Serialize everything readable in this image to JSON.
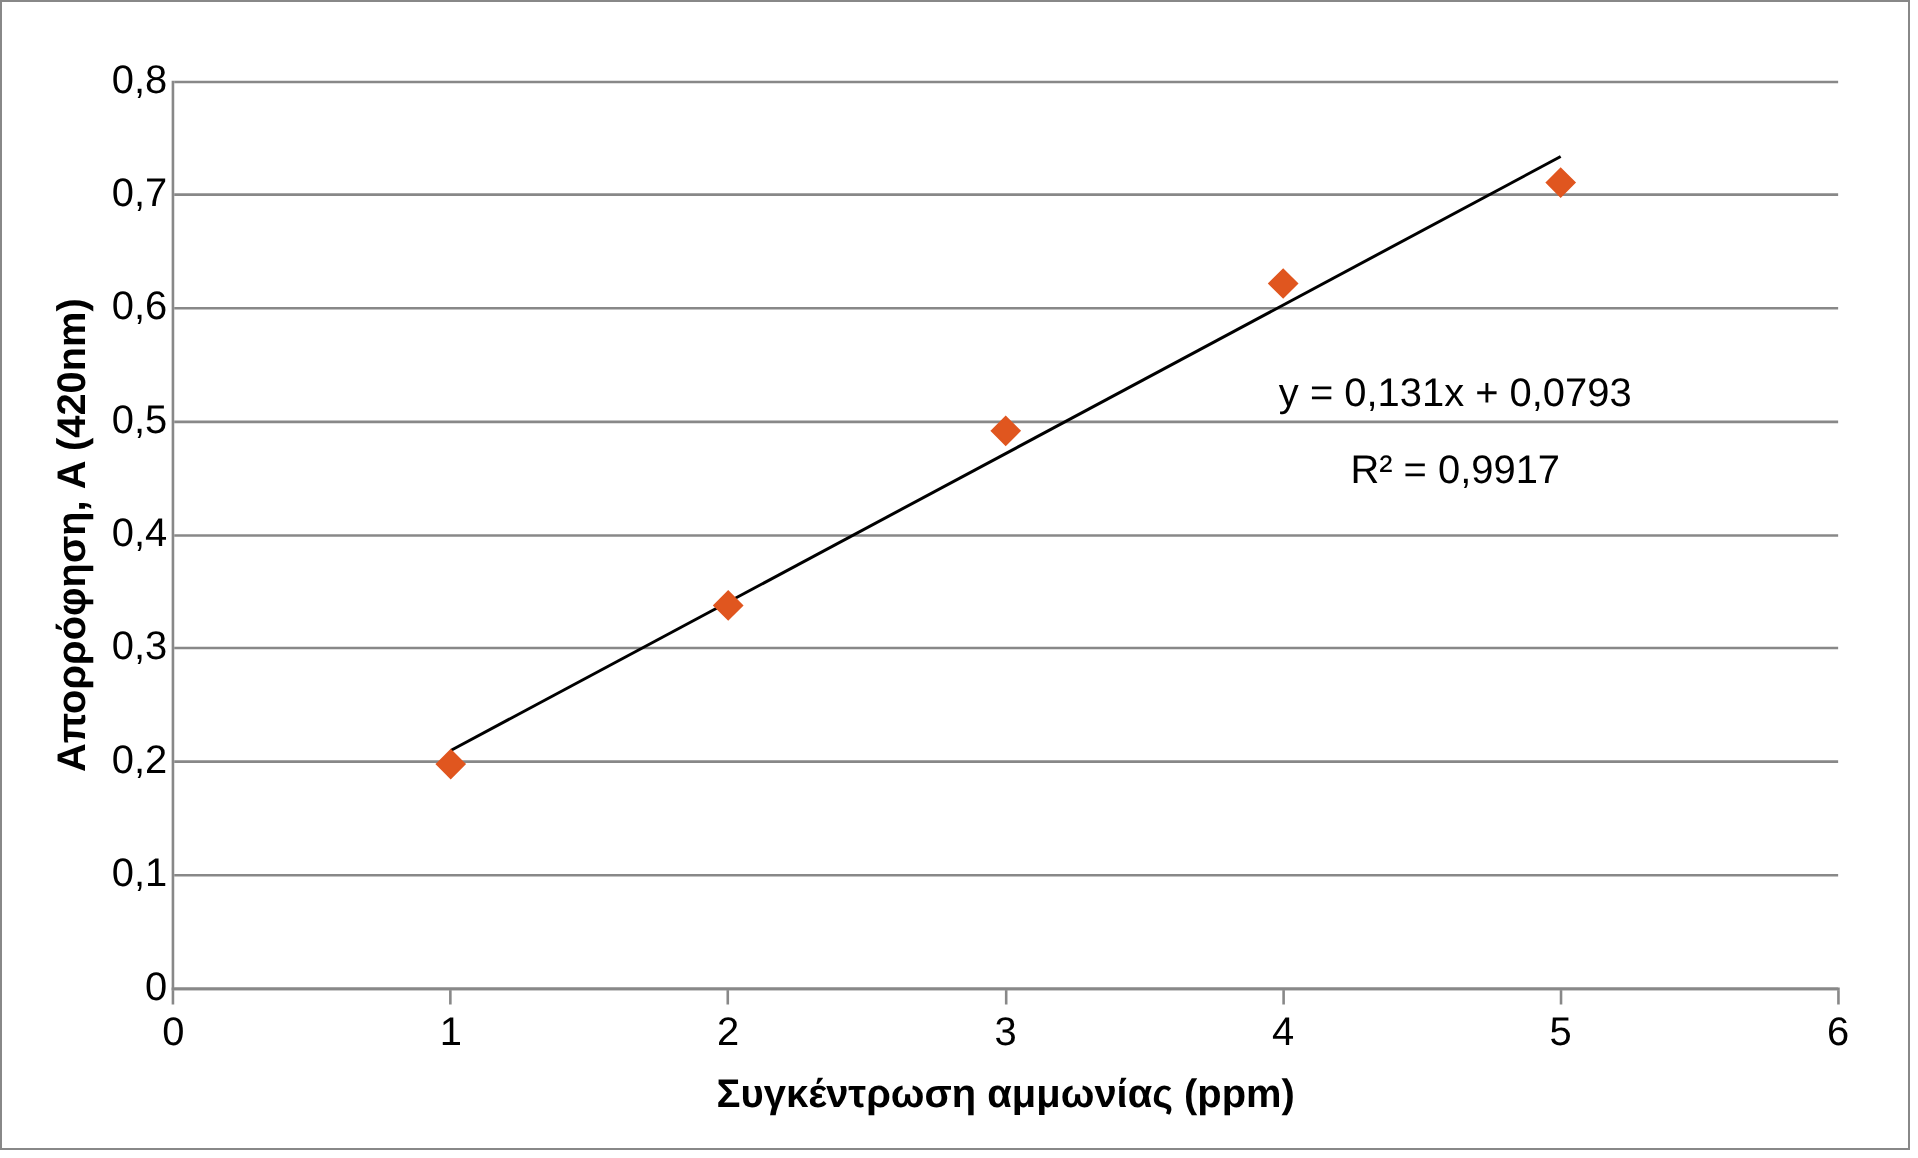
{
  "chart_data": {
    "type": "scatter",
    "xlabel": "Συγκέντρωση αμμωνίας (ppm)",
    "ylabel": "Απορρόφηση, A (420nm)",
    "series": [
      {
        "type": "scatter",
        "color": "#e0561f",
        "x": [
          1,
          2,
          3,
          4,
          5
        ],
        "values": [
          0.198,
          0.338,
          0.492,
          0.622,
          0.711
        ]
      },
      {
        "type": "line",
        "color": "#000000",
        "marker": "none",
        "x": [
          1,
          5
        ],
        "values": [
          0.21,
          0.734
        ]
      }
    ],
    "xlim": [
      0,
      6
    ],
    "xticks": [
      0,
      1,
      2,
      3,
      4,
      5,
      6
    ],
    "ylim": [
      0,
      0.8
    ],
    "yticks": [
      0,
      {
        "value": 0.1,
        "label": "0,1"
      },
      {
        "value": 0.2,
        "label": "0,2"
      },
      {
        "value": 0.3,
        "label": "0,3"
      },
      {
        "value": 0.4,
        "label": "0,4"
      },
      {
        "value": 0.5,
        "label": "0,5"
      },
      {
        "value": 0.6,
        "label": "0,6"
      },
      {
        "value": 0.7,
        "label": "0,7"
      },
      {
        "value": 0.8,
        "label": "0,8"
      }
    ],
    "annotations": [
      "y = 0,131x + 0,0793",
      "R² = 0,9917"
    ],
    "grid": "y",
    "legend": false,
    "marker": "diamond"
  }
}
